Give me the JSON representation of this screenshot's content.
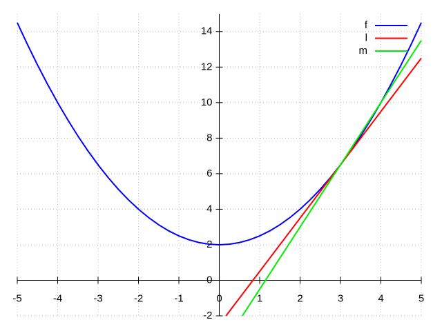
{
  "chart_data": {
    "type": "line",
    "xlim": [
      -5,
      5
    ],
    "ylim": [
      -2,
      15
    ],
    "xticks": [
      -5,
      -4,
      -3,
      -2,
      -1,
      0,
      1,
      2,
      3,
      4,
      5
    ],
    "yticks": [
      -2,
      0,
      2,
      4,
      6,
      8,
      10,
      12,
      14
    ],
    "grid": true,
    "legend": "top-right",
    "series": [
      {
        "name": "f",
        "color": "#0000ff",
        "x": [
          -5,
          -4.75,
          -4.5,
          -4.25,
          -4,
          -3.75,
          -3.5,
          -3.25,
          -3,
          -2.75,
          -2.5,
          -2.25,
          -2,
          -1.75,
          -1.5,
          -1.25,
          -1,
          -0.75,
          -0.5,
          -0.25,
          0,
          0.25,
          0.5,
          0.75,
          1,
          1.25,
          1.5,
          1.75,
          2,
          2.25,
          2.5,
          2.75,
          3,
          3.25,
          3.5,
          3.75,
          4,
          4.25,
          4.5,
          4.75,
          5
        ],
        "values": [
          14.5,
          13.28125,
          12.125,
          11.03125,
          10,
          9.03125,
          8.125,
          7.28125,
          6.5,
          5.78125,
          5.125,
          4.53125,
          4,
          3.53125,
          3.125,
          2.78125,
          2.5,
          2.28125,
          2.125,
          2.03125,
          2,
          2.03125,
          2.125,
          2.28125,
          2.5,
          2.78125,
          3.125,
          3.53125,
          4,
          4.53125,
          5.125,
          5.78125,
          6.5,
          7.28125,
          8.125,
          9.03125,
          10,
          11.03125,
          12.125,
          13.28125,
          14.5
        ]
      },
      {
        "name": "l",
        "color": "#ff0000",
        "x": [
          0.1667,
          5
        ],
        "values": [
          -2,
          12.5
        ]
      },
      {
        "name": "m",
        "color": "#00ee00",
        "x": [
          0.5714,
          5
        ],
        "values": [
          -2,
          13.5
        ]
      }
    ]
  }
}
